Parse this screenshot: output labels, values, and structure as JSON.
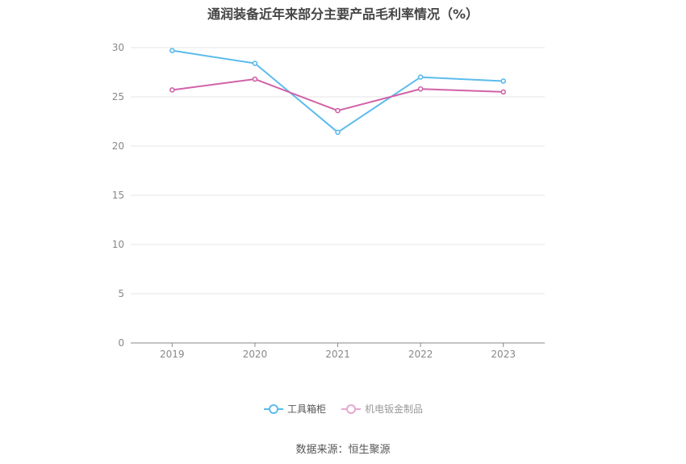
{
  "chart_data": {
    "type": "line",
    "title": "通润装备近年来部分主要产品毛利率情况（%）",
    "categories": [
      "2019",
      "2020",
      "2021",
      "2022",
      "2023"
    ],
    "ylim": [
      0,
      30
    ],
    "yticks": [
      "0",
      "5",
      "10",
      "15",
      "20",
      "25",
      "30"
    ],
    "grid": true,
    "legend_position": "bottom-center",
    "series": [
      {
        "name": "工具箱柜",
        "color": "#5bbcec",
        "values": [
          29.7,
          28.4,
          21.4,
          27.0,
          26.6
        ]
      },
      {
        "name": "机电钣金制品",
        "color": "#d162a8",
        "values": [
          25.7,
          26.8,
          23.6,
          25.8,
          25.5
        ]
      }
    ]
  },
  "legend_colors": {
    "inactive": "#e6a8d0"
  },
  "source": "数据来源：恒生聚源"
}
